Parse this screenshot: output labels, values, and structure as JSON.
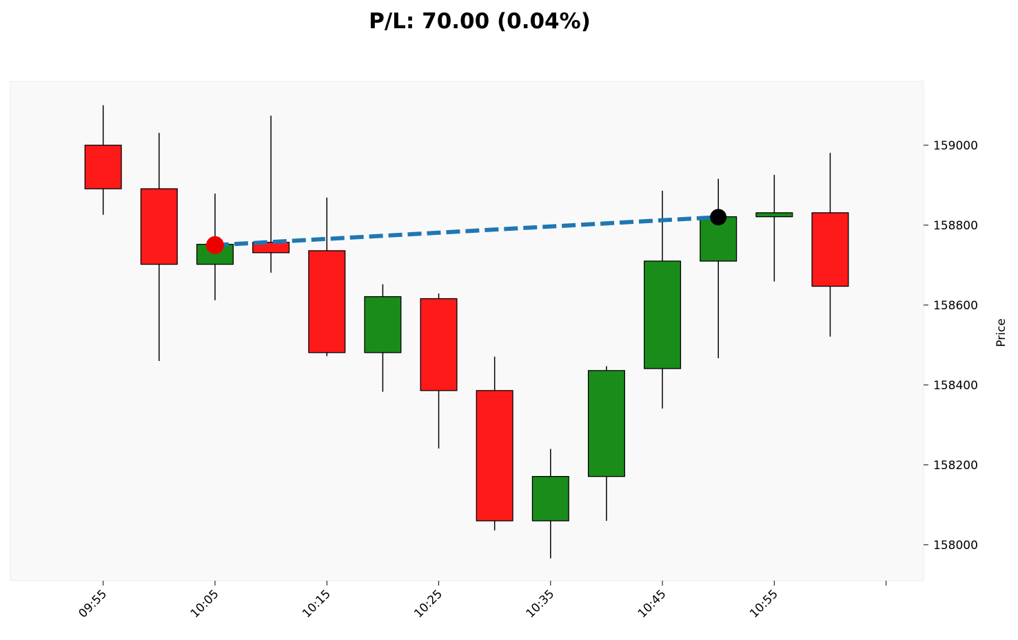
{
  "chart_data": {
    "type": "candlestick",
    "title": "P/L: 70.00 (0.04%)",
    "y_label": "Price",
    "categories": [
      "09:55",
      null,
      "10:05",
      null,
      "10:15",
      null,
      "10:25",
      null,
      "10:35",
      null,
      "10:45",
      null,
      "10:55",
      null
    ],
    "open": [
      159000,
      158891,
      158702,
      158757,
      158736,
      158481,
      158616,
      158386,
      158060,
      158171,
      158441,
      158710,
      158821,
      158831
    ],
    "high": [
      159100,
      159031,
      158879,
      159074,
      158869,
      158652,
      158629,
      158471,
      158240,
      158447,
      158886,
      158916,
      158926,
      158981
    ],
    "low": [
      158826,
      158460,
      158612,
      158681,
      158472,
      158383,
      158241,
      158036,
      157966,
      158060,
      158341,
      158467,
      158659,
      158521
    ],
    "close": [
      158891,
      158702,
      158752,
      158731,
      158481,
      158621,
      158386,
      158060,
      158171,
      158436,
      158710,
      158821,
      158831,
      158647
    ],
    "up_color": "#1a8c1a",
    "down_color": "#ff1a1a",
    "xlim": [
      -1.66,
      14.67
    ],
    "xticks": [
      0,
      2,
      4,
      6,
      8,
      10,
      12,
      14
    ],
    "ylim": [
      157910,
      159160
    ],
    "yticks": [
      158000,
      158200,
      158400,
      158600,
      158800,
      159000
    ],
    "trade": {
      "x": [
        2,
        11
      ],
      "values": [
        158750,
        158820
      ],
      "color": "#1f77b4",
      "entry_color": "#ee0000",
      "exit_color": "#000000"
    }
  }
}
